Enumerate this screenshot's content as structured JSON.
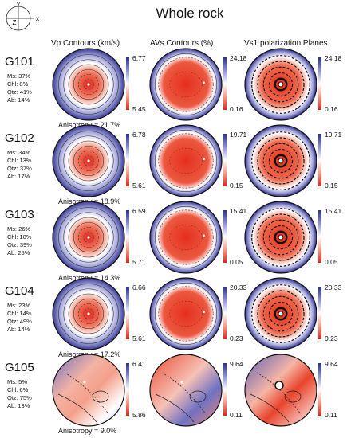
{
  "figure": {
    "title": "Whole rock",
    "axes": {
      "y": "y",
      "z": "Z",
      "x": "x"
    },
    "columns": [
      "Vp  Contours (km/s)",
      "AVs Contours (%)",
      "Vs1 polarization Planes"
    ],
    "anisotropy_prefix": "Anisotropy = ",
    "samples": [
      {
        "id": "G101",
        "minerals": [
          "Ms: 37%",
          "Chl: 8%",
          "Qtz: 41%",
          "Ab: 14%"
        ],
        "anisotropy": "21.7%",
        "vp": {
          "max": "6.77",
          "min": "5.45"
        },
        "avs": {
          "max": "24.18",
          "min": "0.16"
        },
        "vs1": {
          "max": "24.18",
          "min": "0.16"
        }
      },
      {
        "id": "G102",
        "minerals": [
          "Ms: 34%",
          "Chl: 13%",
          "Qtz: 37%",
          "Ab: 17%"
        ],
        "anisotropy": "18.9%",
        "vp": {
          "max": "6.78",
          "min": "5.61"
        },
        "avs": {
          "max": "19.71",
          "min": "0.15"
        },
        "vs1": {
          "max": "19.71",
          "min": "0.15"
        }
      },
      {
        "id": "G103",
        "minerals": [
          "Ms: 26%",
          "Chl: 10%",
          "Qtz: 39%",
          "Ab: 25%"
        ],
        "anisotropy": "14.3%",
        "vp": {
          "max": "6.59",
          "min": "5.71"
        },
        "avs": {
          "max": "15.41",
          "min": "0.05"
        },
        "vs1": {
          "max": "15.41",
          "min": "0.05"
        }
      },
      {
        "id": "G104",
        "minerals": [
          "Ms: 23%",
          "Chl: 14%",
          "Qtz: 49%",
          "Ab: 14%"
        ],
        "anisotropy": "17.2%",
        "vp": {
          "max": "6.66",
          "min": "5.61"
        },
        "avs": {
          "max": "20.33",
          "min": "0.23"
        },
        "vs1": {
          "max": "20.33",
          "min": "0.23"
        }
      },
      {
        "id": "G105",
        "minerals": [
          "Ms: 5%",
          "Chl: 6%",
          "Qtz: 75%",
          "Ab: 13%"
        ],
        "anisotropy": "9.0%",
        "vp": {
          "max": "6.41",
          "min": "5.86"
        },
        "avs": {
          "max": "9.64",
          "min": "0.11"
        },
        "vs1": {
          "max": "9.64",
          "min": "0.11"
        }
      }
    ],
    "colors": {
      "high": "#2e2f8a",
      "mid": "#ffffff",
      "low": "#e8321e"
    }
  }
}
